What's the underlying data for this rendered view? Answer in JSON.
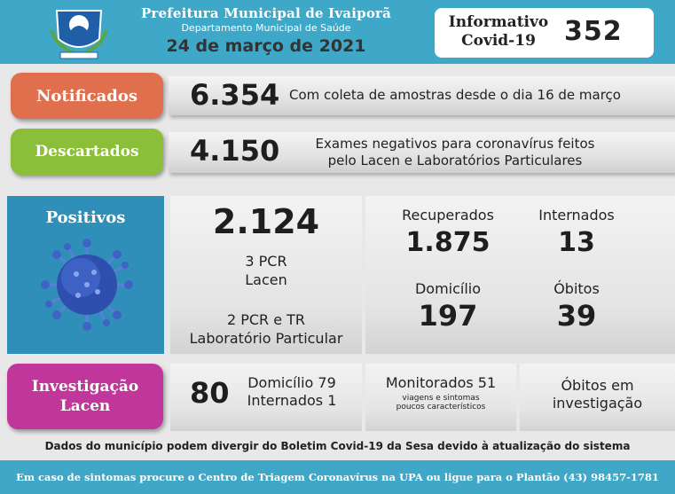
{
  "header": {
    "title": "Prefeitura Municipal de Ivaiporã",
    "subtitle": "Departamento Municipal de Saúde",
    "date": "24 de março de 2021",
    "info_label_1": "Informativo",
    "info_label_2": "Covid-19",
    "bulletin_number": "352",
    "crest_icon": "municipal-crest-icon"
  },
  "notificados": {
    "label": "Notificados",
    "value": "6.354",
    "description": "Com coleta de amostras desde o dia 16 de março",
    "color": "#e06f4e"
  },
  "descartados": {
    "label": "Descartados",
    "value": "4.150",
    "description_1": "Exames negativos para coronavírus feitos",
    "description_2": "pelo Lacen e Laboratórios Particulares",
    "color": "#8bbf3a"
  },
  "positivos": {
    "label": "Positivos",
    "total": "2.124",
    "lacen_1": "3 PCR",
    "lacen_2": "Lacen",
    "lab_1": "2 PCR e TR",
    "lab_2": "Laboratório Particular",
    "recuperados_label": "Recuperados",
    "recuperados_value": "1.875",
    "internados_label": "Internados",
    "internados_value": "13",
    "domicilio_label": "Domicílio",
    "domicilio_value": "197",
    "obitos_label": "Óbitos",
    "obitos_value": "39",
    "color": "#2f8fb8"
  },
  "investigacao": {
    "label_1": "Investigação",
    "label_2": "Lacen",
    "total": "80",
    "domicilio": "Domicílio 79",
    "internados": "Internados 1",
    "monitorados": "Monitorados 51",
    "monitorados_note_1": "viagens e sintomas",
    "monitorados_note_2": "poucos característicos",
    "obitos_1": "Óbitos em",
    "obitos_2": "investigação",
    "color": "#c0369a"
  },
  "footer": {
    "note": "Dados do município podem divergir do Boletim Covid-19 da Sesa devido à atualização do sistema",
    "contact": "Em caso de sintomas procure o Centro de Triagem Coronavírus na UPA ou ligue para o Plantão (43) 98457-1781"
  },
  "colors": {
    "header": "#3fa8c8"
  }
}
